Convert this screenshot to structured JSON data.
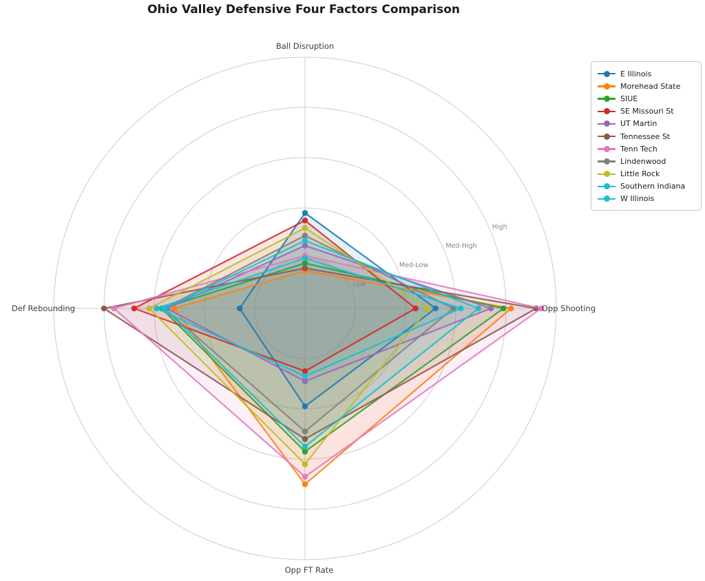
{
  "chart_data": {
    "type": "radar",
    "title": "Ohio Valley Defensive Four Factors Comparison",
    "axes": [
      "Ball Disruption",
      "Opp Shooting",
      "Opp FT Rate",
      "Def Rebounding"
    ],
    "ring_labels": [
      "Low",
      "Med-Low",
      "Med-High",
      "High"
    ],
    "scale": {
      "min": 0,
      "max": 5,
      "ring_values": [
        1,
        2,
        3,
        4
      ],
      "outer_ring": 5
    },
    "grid": true,
    "legend_position": "upper right",
    "series": [
      {
        "name": "E Illinois",
        "color": "#1f77b4",
        "values": [
          1.9,
          2.6,
          1.95,
          1.3
        ]
      },
      {
        "name": "Morehead State",
        "color": "#ff7f0e",
        "values": [
          0.75,
          4.1,
          3.5,
          2.6
        ]
      },
      {
        "name": "SIUE",
        "color": "#2ca02c",
        "values": [
          0.9,
          3.95,
          2.85,
          2.85
        ]
      },
      {
        "name": "SE Missouri St",
        "color": "#d62728",
        "values": [
          1.75,
          2.2,
          1.25,
          3.4
        ]
      },
      {
        "name": "UT Martin",
        "color": "#9467bd",
        "values": [
          1.25,
          3.7,
          1.45,
          2.75
        ]
      },
      {
        "name": "Tennessee St",
        "color": "#8c564b",
        "values": [
          0.8,
          4.6,
          2.6,
          4.0
        ]
      },
      {
        "name": "Tenn Tech",
        "color": "#e377c2",
        "values": [
          1.05,
          4.7,
          3.35,
          3.8
        ]
      },
      {
        "name": "Lindenwood",
        "color": "#7f7f7f",
        "values": [
          1.45,
          2.95,
          2.45,
          2.8
        ]
      },
      {
        "name": "Little Rock",
        "color": "#bcbd22",
        "values": [
          1.6,
          2.45,
          3.1,
          3.1
        ]
      },
      {
        "name": "Southern Indiana",
        "color": "#17becf",
        "values": [
          1.35,
          3.45,
          2.75,
          2.8
        ]
      },
      {
        "name": "W Illinois",
        "color": "#17becf",
        "values": [
          1.0,
          3.1,
          1.35,
          2.95
        ]
      }
    ],
    "style": {
      "grid_color": "#cccccc",
      "ring_label_color": "#848484",
      "axis_label_color": "#3d3d3d",
      "title_color": "#1a1a1a"
    }
  }
}
